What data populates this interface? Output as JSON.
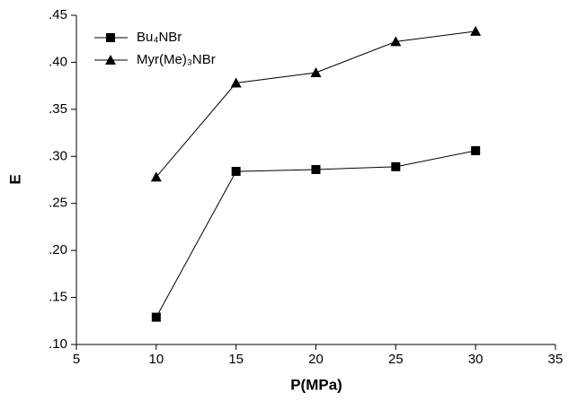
{
  "chart_data": {
    "type": "line",
    "x_label": "P(MPa)",
    "y_label": "E",
    "x": [
      10,
      15,
      20,
      25,
      30
    ],
    "series": [
      {
        "name": "Bu₄NBr",
        "color": "#000000",
        "marker": "square",
        "values": [
          0.129,
          0.284,
          0.286,
          0.289,
          0.306
        ]
      },
      {
        "name": "Myr(Me)₃NBr",
        "color": "#000000",
        "marker": "triangle",
        "values": [
          0.278,
          0.378,
          0.389,
          0.422,
          0.433
        ]
      }
    ],
    "xlim": [
      5,
      35
    ],
    "xticks": [
      5,
      10,
      15,
      20,
      25,
      30,
      35
    ],
    "ylim": [
      0.1,
      0.45
    ],
    "yticks": [
      {
        "value": 0.1,
        "label": ".10"
      },
      {
        "value": 0.15,
        "label": ".15"
      },
      {
        "value": 0.2,
        "label": ".20"
      },
      {
        "value": 0.25,
        "label": ".25"
      },
      {
        "value": 0.3,
        "label": ".30"
      },
      {
        "value": 0.35,
        "label": ".35"
      },
      {
        "value": 0.4,
        "label": ".40"
      },
      {
        "value": 0.45,
        "label": ".45"
      }
    ],
    "legend": "upper left"
  }
}
